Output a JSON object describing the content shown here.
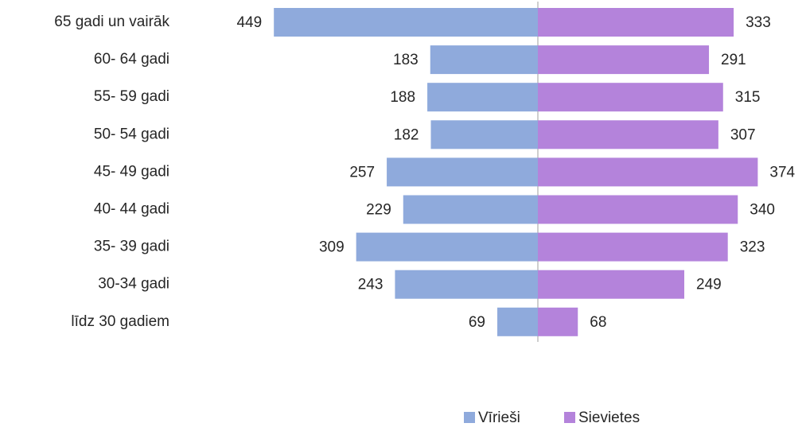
{
  "chart_data": {
    "type": "bar",
    "orientation": "horizontal-diverging",
    "categories": [
      "65 gadi un vairāk",
      "60- 64 gadi",
      "55- 59 gadi",
      "50- 54 gadi",
      "45- 49 gadi",
      "40- 44 gadi",
      "35- 39 gadi",
      "30-34 gadi",
      "līdz 30 gadiem"
    ],
    "series": [
      {
        "name": "Vīrieši",
        "color": "#8faadc",
        "values": [
          449,
          183,
          188,
          182,
          257,
          229,
          309,
          243,
          69
        ]
      },
      {
        "name": "Sievietes",
        "color": "#b483db",
        "values": [
          333,
          291,
          315,
          307,
          374,
          340,
          323,
          249,
          68
        ]
      }
    ],
    "legend": "bottom"
  }
}
